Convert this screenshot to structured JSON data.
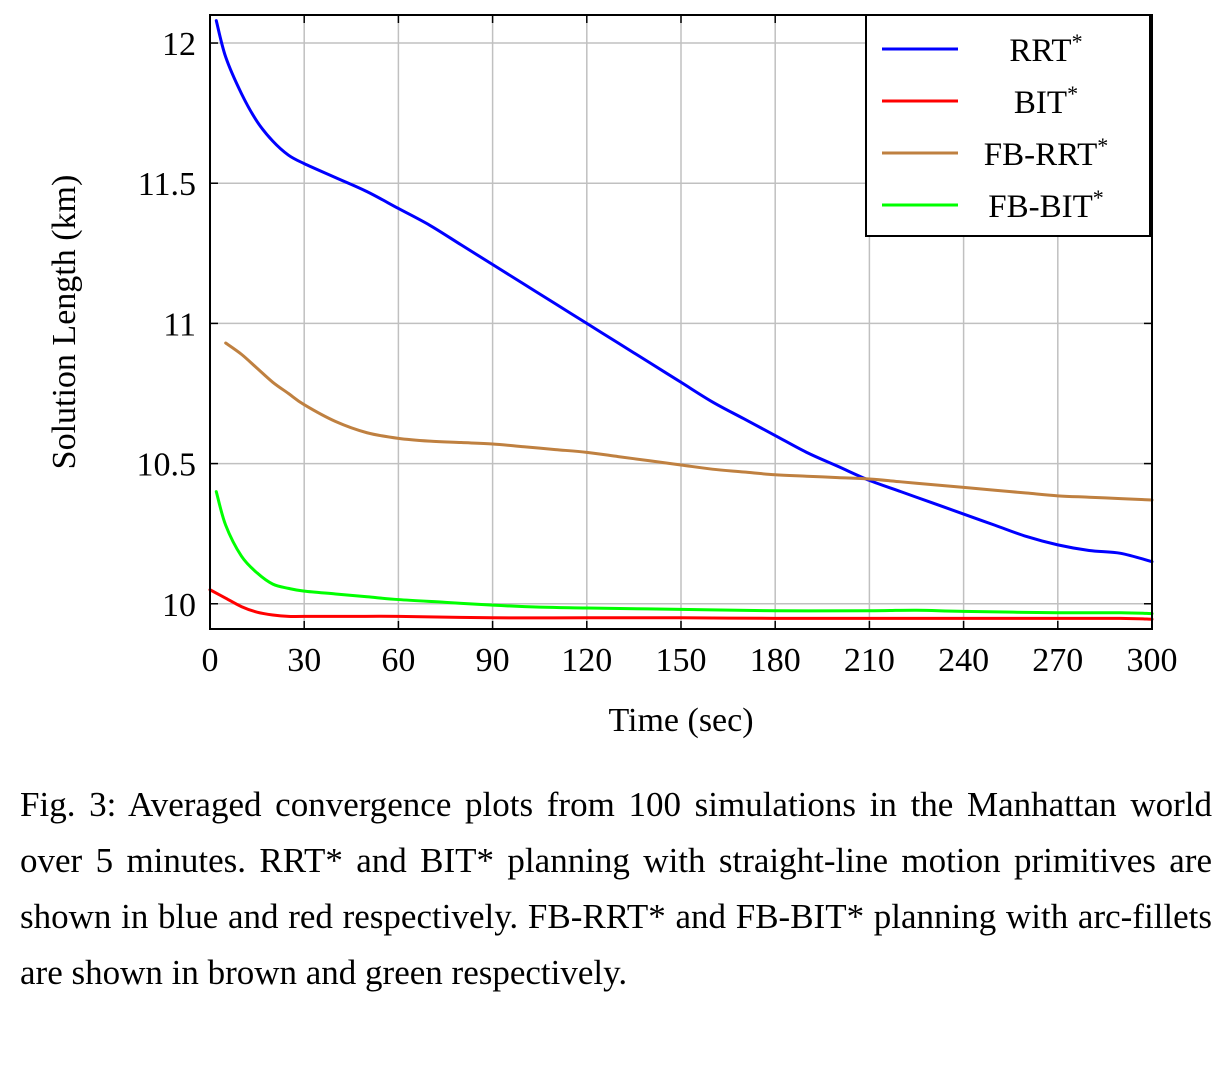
{
  "chart_data": {
    "type": "line",
    "xlabel": "Time (sec)",
    "ylabel": "Solution Length (km)",
    "xlim": [
      0,
      300
    ],
    "ylim": [
      9.91,
      12.1
    ],
    "xticks": [
      0,
      30,
      60,
      90,
      120,
      150,
      180,
      210,
      240,
      270,
      300
    ],
    "yticks": [
      10,
      10.5,
      11,
      11.5,
      12
    ],
    "ytick_labels": [
      "10",
      "10.5",
      "11",
      "11.5",
      "12"
    ],
    "grid": true,
    "legend_position": "top-right",
    "series": [
      {
        "name": "RRT",
        "name_sup": "*",
        "color": "#0000ff",
        "x": [
          2,
          5,
          10,
          15,
          20,
          25,
          30,
          40,
          50,
          60,
          70,
          80,
          90,
          100,
          110,
          120,
          130,
          140,
          150,
          160,
          170,
          180,
          190,
          200,
          210,
          220,
          230,
          240,
          250,
          260,
          270,
          280,
          290,
          300
        ],
        "y": [
          12.08,
          11.95,
          11.82,
          11.72,
          11.65,
          11.6,
          11.57,
          11.52,
          11.47,
          11.41,
          11.35,
          11.28,
          11.21,
          11.14,
          11.07,
          11.0,
          10.93,
          10.86,
          10.79,
          10.72,
          10.66,
          10.6,
          10.54,
          10.49,
          10.44,
          10.4,
          10.36,
          10.32,
          10.28,
          10.24,
          10.21,
          10.19,
          10.18,
          10.15
        ]
      },
      {
        "name": "BIT",
        "name_sup": "*",
        "color": "#ff0000",
        "x": [
          0,
          5,
          10,
          15,
          20,
          25,
          30,
          45,
          60,
          90,
          120,
          150,
          180,
          210,
          240,
          270,
          290,
          300
        ],
        "y": [
          10.05,
          10.02,
          9.99,
          9.97,
          9.96,
          9.955,
          9.955,
          9.955,
          9.955,
          9.95,
          9.95,
          9.95,
          9.948,
          9.948,
          9.948,
          9.948,
          9.948,
          9.945
        ]
      },
      {
        "name": "FB-RRT",
        "name_sup": "*",
        "color": "#bf8040",
        "x": [
          5,
          10,
          15,
          20,
          25,
          30,
          40,
          50,
          60,
          70,
          80,
          90,
          100,
          110,
          120,
          130,
          140,
          150,
          160,
          170,
          180,
          190,
          200,
          210,
          220,
          230,
          240,
          250,
          260,
          270,
          280,
          290,
          300
        ],
        "y": [
          10.93,
          10.89,
          10.84,
          10.79,
          10.75,
          10.71,
          10.65,
          10.61,
          10.59,
          10.58,
          10.575,
          10.57,
          10.56,
          10.55,
          10.54,
          10.525,
          10.51,
          10.495,
          10.48,
          10.47,
          10.46,
          10.455,
          10.45,
          10.445,
          10.435,
          10.425,
          10.415,
          10.405,
          10.395,
          10.385,
          10.38,
          10.375,
          10.37
        ]
      },
      {
        "name": "FB-BIT",
        "name_sup": "*",
        "color": "#00ff00",
        "x": [
          2,
          5,
          10,
          15,
          20,
          25,
          30,
          40,
          50,
          60,
          75,
          90,
          105,
          120,
          150,
          180,
          210,
          225,
          240,
          270,
          290,
          300
        ],
        "y": [
          10.4,
          10.28,
          10.17,
          10.11,
          10.07,
          10.055,
          10.045,
          10.035,
          10.025,
          10.015,
          10.005,
          9.995,
          9.988,
          9.985,
          9.98,
          9.975,
          9.975,
          9.977,
          9.973,
          9.968,
          9.968,
          9.965
        ]
      }
    ]
  },
  "caption": "Fig. 3: Averaged convergence plots from 100 simulations in the Manhattan world over 5 minutes. RRT* and BIT* planning with straight-line motion primitives are shown in blue and red respectively. FB-RRT* and FB-BIT* planning with arc-fillets are shown in brown and green respectively."
}
